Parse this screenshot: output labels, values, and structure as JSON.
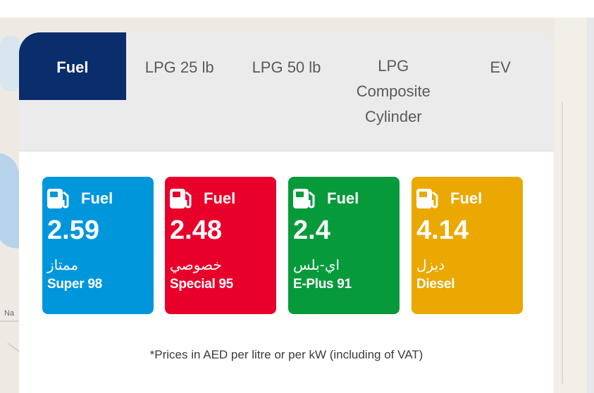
{
  "map": {
    "label": "Na"
  },
  "tabs": [
    {
      "label": "Fuel",
      "active": true
    },
    {
      "label": "LPG 25 lb",
      "active": false
    },
    {
      "label": "LPG 50 lb",
      "active": false
    },
    {
      "label": "LPG Composite Cylinder",
      "active": false
    },
    {
      "label": "EV",
      "active": false
    }
  ],
  "tiles": [
    {
      "kind": "Fuel",
      "price": "2.59",
      "name_ar": "ممتاز",
      "name_en": "Super 98",
      "color": "#0096db",
      "icon": "fuel-pump-icon"
    },
    {
      "kind": "Fuel",
      "price": "2.48",
      "name_ar": "خصوصي",
      "name_en": "Special 95",
      "color": "#e8002b",
      "icon": "fuel-pump-icon"
    },
    {
      "kind": "Fuel",
      "price": "2.4",
      "name_ar": "اي-بلس",
      "name_en": "E-Plus 91",
      "color": "#069a3a",
      "icon": "fuel-pump-icon"
    },
    {
      "kind": "Fuel",
      "price": "4.14",
      "name_ar": "ديزل",
      "name_en": "Diesel",
      "color": "#eaa800",
      "icon": "fuel-pump-icon"
    }
  ],
  "note": "*Prices in AED per litre or per kW (including of VAT)"
}
